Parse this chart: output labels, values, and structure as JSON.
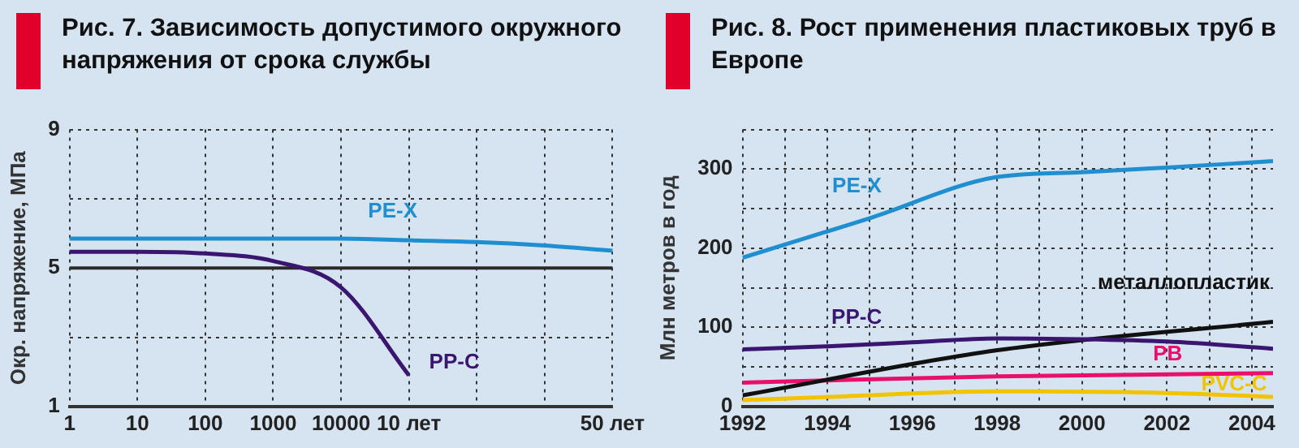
{
  "chart_data": [
    {
      "type": "line",
      "title": "Рис. 7. Зависимость допустимого окружного напряжения от срока службы",
      "ylabel": "Окр. напряжение, МПа",
      "categories": [
        "1",
        "10",
        "100",
        "1000",
        "10000",
        "10 лет",
        null,
        null,
        "50 лет"
      ],
      "ylim": [
        1,
        9
      ],
      "yticks": [
        1,
        {
          "value": 3,
          "label": null
        },
        5,
        {
          "value": 7,
          "label": null
        },
        9
      ],
      "grid": true,
      "legend": false,
      "ref_lines": [
        {
          "axis": "y",
          "value": 5,
          "color": "#2a2a2a"
        }
      ],
      "series": [
        {
          "name": "PE-X",
          "color": "#1f8fd0",
          "values": [
            5.85,
            5.85,
            5.85,
            5.85,
            5.85,
            5.8,
            5.75,
            5.65,
            5.5
          ]
        },
        {
          "name": "PP-C",
          "color": "#3a1670",
          "values": [
            5.47,
            5.47,
            5.42,
            5.2,
            4.44,
            1.9,
            null,
            null,
            null
          ]
        }
      ]
    },
    {
      "type": "line",
      "title": "Рис. 8. Рост применения пластиковых труб в Европе",
      "ylabel": "Млн метров в год",
      "xlim": [
        1992,
        2004.5
      ],
      "xticks": [
        1992,
        {
          "value": 1993,
          "label": null
        },
        1994,
        {
          "value": 1995,
          "label": null
        },
        1996,
        {
          "value": 1997,
          "label": null
        },
        1998,
        {
          "value": 1999,
          "label": null
        },
        2000,
        {
          "value": 2001,
          "label": null
        },
        2002,
        {
          "value": 2003,
          "label": null
        },
        2004
      ],
      "ylim": [
        0,
        350
      ],
      "yticks": [
        0,
        {
          "value": 50,
          "label": null
        },
        100,
        {
          "value": 150,
          "label": null
        },
        200,
        {
          "value": 250,
          "label": null
        },
        300,
        {
          "value": 350,
          "label": null
        }
      ],
      "grid": true,
      "legend": false,
      "series": [
        {
          "name": "PE-X",
          "color": "#1f8fd0",
          "x": [
            1992,
            1995,
            1998,
            2000,
            2002,
            2004.5
          ],
          "values": [
            188,
            238,
            290,
            296,
            302,
            310
          ]
        },
        {
          "name": "PP-C",
          "color": "#3a1670",
          "x": [
            1992,
            1994,
            1996,
            1998,
            2000,
            2002,
            2004.5
          ],
          "values": [
            72,
            76,
            81,
            86,
            85,
            82,
            73
          ]
        },
        {
          "name": "металлопластик",
          "color": "#111111",
          "x": [
            1992,
            1998,
            2004.5
          ],
          "values": [
            14,
            71,
            107
          ]
        },
        {
          "name": "PB",
          "color": "#e8106a",
          "x": [
            1992,
            1994,
            1998,
            2004.5
          ],
          "values": [
            30,
            33,
            38,
            42
          ]
        },
        {
          "name": "PVC-C",
          "color": "#f2c400",
          "x": [
            1992,
            1994,
            1998,
            2002,
            2004.5
          ],
          "values": [
            8,
            12,
            19,
            17,
            12
          ]
        }
      ]
    }
  ]
}
